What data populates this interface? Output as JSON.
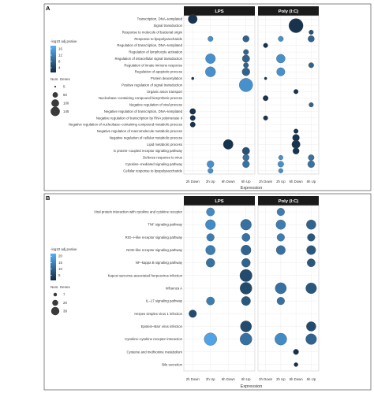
{
  "chart_data": [
    {
      "panel": "A",
      "type": "scatter",
      "xlabel": "Expression",
      "facets": [
        "LPS",
        "Poly (I:C)"
      ],
      "x_categories": [
        "2h Down",
        "2h Up",
        "6h Down",
        "6h Up"
      ],
      "legend": {
        "color_title": "-log10 adj.pvalue",
        "color_ticks": [
          4,
          8,
          12,
          16
        ],
        "color_range": [
          1,
          18
        ],
        "size_title": "Num. Genes",
        "size_ticks": [
          5,
          50,
          100,
          145
        ]
      },
      "terms": [
        "Transcription, DNA–templated",
        "Signal transduction",
        "Response to molecule of bacterial origin",
        "Response to lipopolysaccharide",
        "Regulation of transcription, DNA–templated",
        "Regulation of lymphocyte activation",
        "Regulation of intracellular signal transduction",
        "Regulation of innate immune response",
        "Regulation of apoptotic process",
        "Protein deacetylation",
        "Positive regulation of signal transduction",
        "Organic anion transport",
        "Nucleobase–containing compound biosynthetic process",
        "Negative regulation of viral process",
        "Negative regulation of transcription, DNA–templated",
        "Negative regulation of transcription by RNA polymerase II",
        "Negative regulation of nucleobase–containing compound metabolic process",
        "Negative regulation of macromolecule metabolic process",
        "Negative regulation of cellular metabolic process",
        "Lipid metabolic process",
        "G protein–coupled receptor signaling pathway",
        "Defense response to virus",
        "Cytokine–mediated signaling pathway",
        "Cellular response to lipopolysaccharide"
      ],
      "points": [
        {
          "facet": 0,
          "x": "2h Down",
          "term": 0,
          "genes": 60,
          "logp": 2
        },
        {
          "facet": 0,
          "x": "2h Up",
          "term": 3,
          "genes": 20,
          "logp": 14
        },
        {
          "facet": 0,
          "x": "6h Up",
          "term": 3,
          "genes": 30,
          "logp": 8
        },
        {
          "facet": 0,
          "x": "6h Up",
          "term": 5,
          "genes": 20,
          "logp": 8
        },
        {
          "facet": 0,
          "x": "2h Up",
          "term": 6,
          "genes": 70,
          "logp": 14
        },
        {
          "facet": 0,
          "x": "6h Up",
          "term": 6,
          "genes": 40,
          "logp": 8
        },
        {
          "facet": 0,
          "x": "6h Up",
          "term": 7,
          "genes": 20,
          "logp": 8
        },
        {
          "facet": 0,
          "x": "2h Up",
          "term": 8,
          "genes": 75,
          "logp": 14
        },
        {
          "facet": 0,
          "x": "6h Up",
          "term": 8,
          "genes": 45,
          "logp": 8
        },
        {
          "facet": 0,
          "x": "2h Down",
          "term": 9,
          "genes": 5,
          "logp": 2
        },
        {
          "facet": 0,
          "x": "6h Up",
          "term": 10,
          "genes": 130,
          "logp": 14
        },
        {
          "facet": 0,
          "x": "2h Down",
          "term": 14,
          "genes": 25,
          "logp": 2
        },
        {
          "facet": 0,
          "x": "2h Down",
          "term": 15,
          "genes": 20,
          "logp": 2
        },
        {
          "facet": 0,
          "x": "2h Down",
          "term": 16,
          "genes": 20,
          "logp": 2
        },
        {
          "facet": 0,
          "x": "6h Down",
          "term": 19,
          "genes": 70,
          "logp": 2
        },
        {
          "facet": 0,
          "x": "6h Up",
          "term": 20,
          "genes": 40,
          "logp": 6
        },
        {
          "facet": 0,
          "x": "6h Up",
          "term": 21,
          "genes": 30,
          "logp": 10
        },
        {
          "facet": 0,
          "x": "2h Up",
          "term": 22,
          "genes": 35,
          "logp": 14
        },
        {
          "facet": 0,
          "x": "6h Up",
          "term": 22,
          "genes": 35,
          "logp": 10
        },
        {
          "facet": 0,
          "x": "2h Up",
          "term": 23,
          "genes": 20,
          "logp": 14
        },
        {
          "facet": 1,
          "x": "6h Down",
          "term": 1,
          "genes": 145,
          "logp": 2
        },
        {
          "facet": 1,
          "x": "6h Up",
          "term": 2,
          "genes": 15,
          "logp": 6
        },
        {
          "facet": 1,
          "x": "2h Up",
          "term": 3,
          "genes": 20,
          "logp": 14
        },
        {
          "facet": 1,
          "x": "6h Up",
          "term": 3,
          "genes": 30,
          "logp": 8
        },
        {
          "facet": 1,
          "x": "2h Down",
          "term": 4,
          "genes": 15,
          "logp": 2
        },
        {
          "facet": 1,
          "x": "2h Up",
          "term": 6,
          "genes": 55,
          "logp": 14
        },
        {
          "facet": 1,
          "x": "6h Up",
          "term": 7,
          "genes": 20,
          "logp": 8
        },
        {
          "facet": 1,
          "x": "2h Up",
          "term": 8,
          "genes": 50,
          "logp": 14
        },
        {
          "facet": 1,
          "x": "2h Down",
          "term": 9,
          "genes": 5,
          "logp": 2
        },
        {
          "facet": 1,
          "x": "6h Down",
          "term": 11,
          "genes": 15,
          "logp": 2
        },
        {
          "facet": 1,
          "x": "2h Down",
          "term": 12,
          "genes": 20,
          "logp": 2
        },
        {
          "facet": 1,
          "x": "6h Up",
          "term": 13,
          "genes": 15,
          "logp": 8
        },
        {
          "facet": 1,
          "x": "2h Down",
          "term": 15,
          "genes": 15,
          "logp": 2
        },
        {
          "facet": 1,
          "x": "6h Down",
          "term": 17,
          "genes": 15,
          "logp": 2
        },
        {
          "facet": 1,
          "x": "6h Down",
          "term": 18,
          "genes": 35,
          "logp": 2
        },
        {
          "facet": 1,
          "x": "6h Down",
          "term": 19,
          "genes": 50,
          "logp": 2
        },
        {
          "facet": 1,
          "x": "6h Down",
          "term": 20,
          "genes": 30,
          "logp": 2
        },
        {
          "facet": 1,
          "x": "2h Up",
          "term": 21,
          "genes": 15,
          "logp": 14
        },
        {
          "facet": 1,
          "x": "6h Up",
          "term": 21,
          "genes": 25,
          "logp": 10
        },
        {
          "facet": 1,
          "x": "2h Up",
          "term": 22,
          "genes": 25,
          "logp": 14
        },
        {
          "facet": 1,
          "x": "6h Up",
          "term": 22,
          "genes": 35,
          "logp": 10
        },
        {
          "facet": 1,
          "x": "2h Up",
          "term": 23,
          "genes": 15,
          "logp": 14
        }
      ]
    },
    {
      "panel": "B",
      "type": "scatter",
      "xlabel": "Expression",
      "facets": [
        "LPS",
        "Poly (I:C)"
      ],
      "x_categories": [
        "2h Down",
        "2h Up",
        "6h Down",
        "6h Up"
      ],
      "legend": {
        "color_title": "-log10 adj.pvalue",
        "color_ticks": [
          5,
          10,
          15,
          20
        ],
        "color_range": [
          1,
          22
        ],
        "size_title": "Num. Genes",
        "size_ticks": [
          7,
          20,
          38
        ]
      },
      "terms": [
        "Viral protein interaction with cytokine and cytokine receptor",
        "TNF signaling pathway",
        "RIG–I–like receptor signaling pathway",
        "NOD–like receptor signaling pathway",
        "NF–kappa B signaling pathway",
        "Kaposi sarcoma–associated herpesvirus infection",
        "Influenza A",
        "IL–17 signaling pathway",
        "Herpes simplex virus 1 infection",
        "Epstein–Barr virus infection",
        "Cytokine–cytokine receptor interaction",
        "Cysteine and methionine metabolism",
        "Bile secretion"
      ],
      "points": [
        {
          "facet": 0,
          "x": "2h Up",
          "term": 0,
          "genes": 16,
          "logp": 16
        },
        {
          "facet": 0,
          "x": "2h Up",
          "term": 1,
          "genes": 24,
          "logp": 16
        },
        {
          "facet": 0,
          "x": "6h Up",
          "term": 1,
          "genes": 28,
          "logp": 12
        },
        {
          "facet": 0,
          "x": "2h Up",
          "term": 2,
          "genes": 14,
          "logp": 14
        },
        {
          "facet": 0,
          "x": "6h Up",
          "term": 2,
          "genes": 16,
          "logp": 12
        },
        {
          "facet": 0,
          "x": "2h Up",
          "term": 3,
          "genes": 22,
          "logp": 14
        },
        {
          "facet": 0,
          "x": "6h Up",
          "term": 3,
          "genes": 24,
          "logp": 10
        },
        {
          "facet": 0,
          "x": "2h Up",
          "term": 4,
          "genes": 18,
          "logp": 12
        },
        {
          "facet": 0,
          "x": "6h Up",
          "term": 4,
          "genes": 18,
          "logp": 10
        },
        {
          "facet": 0,
          "x": "6h Up",
          "term": 5,
          "genes": 36,
          "logp": 6
        },
        {
          "facet": 0,
          "x": "6h Up",
          "term": 6,
          "genes": 34,
          "logp": 6
        },
        {
          "facet": 0,
          "x": "2h Up",
          "term": 7,
          "genes": 16,
          "logp": 14
        },
        {
          "facet": 0,
          "x": "6h Up",
          "term": 7,
          "genes": 20,
          "logp": 8
        },
        {
          "facet": 0,
          "x": "2h Down",
          "term": 8,
          "genes": 14,
          "logp": 6
        },
        {
          "facet": 0,
          "x": "6h Up",
          "term": 9,
          "genes": 30,
          "logp": 6
        },
        {
          "facet": 0,
          "x": "2h Up",
          "term": 10,
          "genes": 38,
          "logp": 20
        },
        {
          "facet": 0,
          "x": "6h Up",
          "term": 10,
          "genes": 34,
          "logp": 12
        },
        {
          "facet": 1,
          "x": "2h Up",
          "term": 0,
          "genes": 14,
          "logp": 14
        },
        {
          "facet": 1,
          "x": "2h Up",
          "term": 1,
          "genes": 22,
          "logp": 14
        },
        {
          "facet": 1,
          "x": "6h Up",
          "term": 1,
          "genes": 22,
          "logp": 10
        },
        {
          "facet": 1,
          "x": "2h Up",
          "term": 2,
          "genes": 14,
          "logp": 14
        },
        {
          "facet": 1,
          "x": "6h Up",
          "term": 2,
          "genes": 14,
          "logp": 8
        },
        {
          "facet": 1,
          "x": "2h Up",
          "term": 3,
          "genes": 20,
          "logp": 12
        },
        {
          "facet": 1,
          "x": "6h Up",
          "term": 3,
          "genes": 20,
          "logp": 8
        },
        {
          "facet": 1,
          "x": "6h Up",
          "term": 4,
          "genes": 16,
          "logp": 8
        },
        {
          "facet": 1,
          "x": "2h Up",
          "term": 6,
          "genes": 30,
          "logp": 12
        },
        {
          "facet": 1,
          "x": "6h Up",
          "term": 6,
          "genes": 28,
          "logp": 8
        },
        {
          "facet": 1,
          "x": "2h Up",
          "term": 7,
          "genes": 14,
          "logp": 12
        },
        {
          "facet": 1,
          "x": "6h Up",
          "term": 9,
          "genes": 22,
          "logp": 6
        },
        {
          "facet": 1,
          "x": "2h Up",
          "term": 10,
          "genes": 34,
          "logp": 16
        },
        {
          "facet": 1,
          "x": "6h Up",
          "term": 10,
          "genes": 28,
          "logp": 10
        },
        {
          "facet": 1,
          "x": "6h Down",
          "term": 11,
          "genes": 7,
          "logp": 2
        },
        {
          "facet": 1,
          "x": "6h Down",
          "term": 12,
          "genes": 4,
          "logp": 2
        }
      ]
    }
  ]
}
